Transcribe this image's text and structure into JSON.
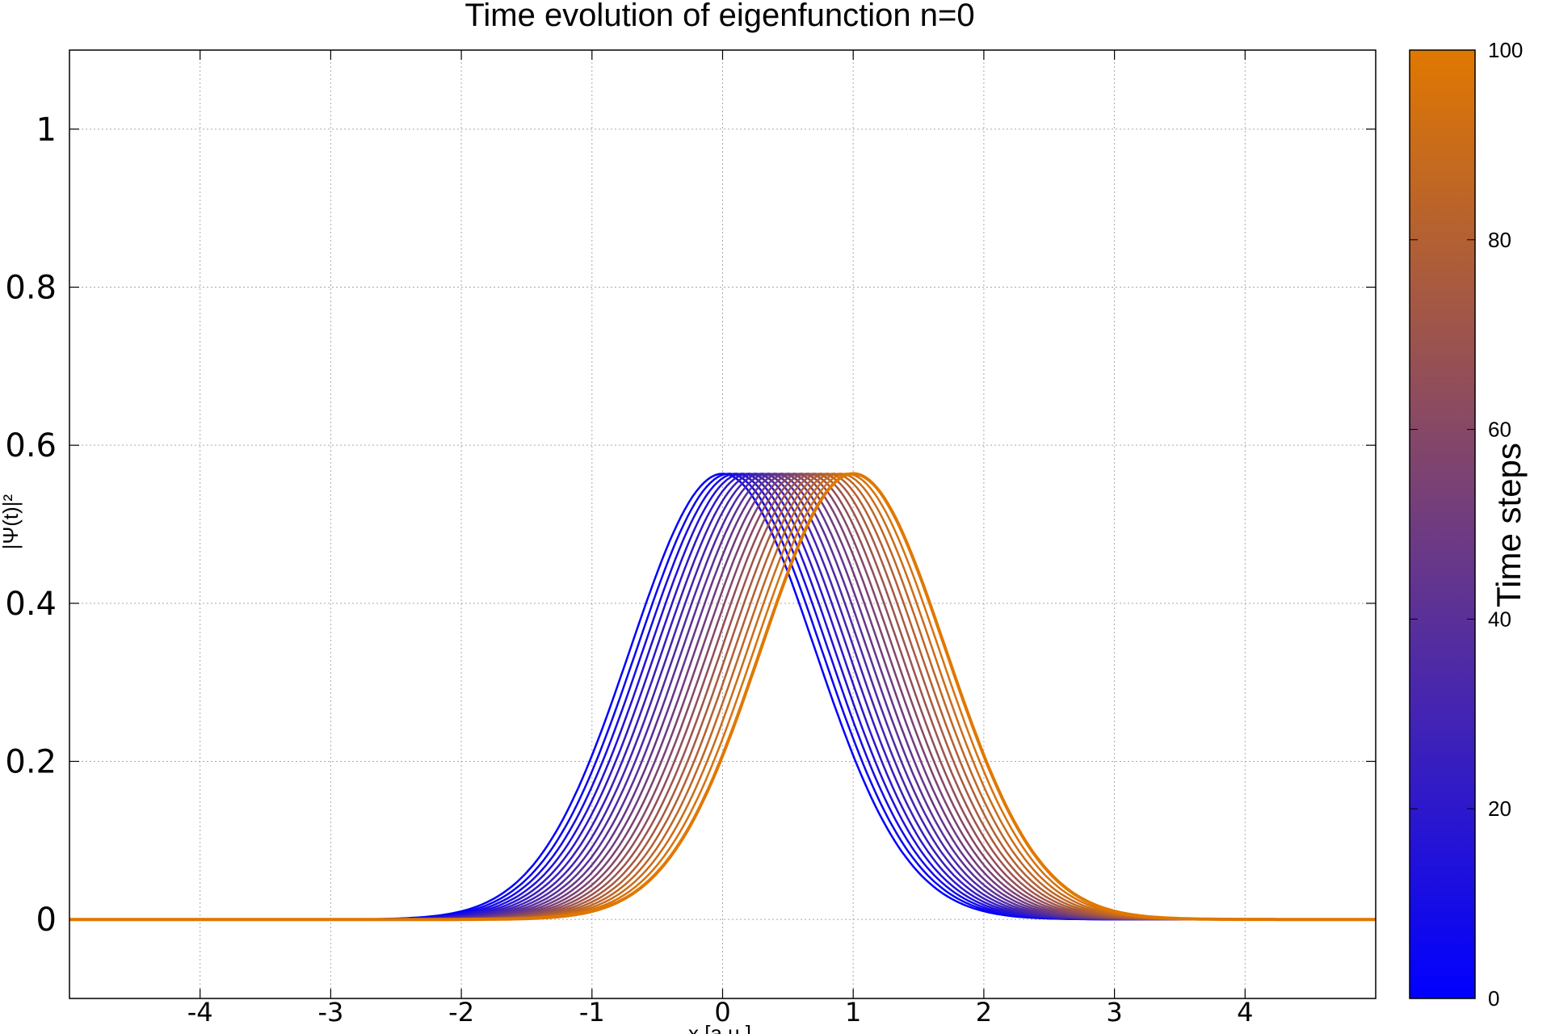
{
  "chart_data": {
    "type": "line",
    "title": "Time evolution of eigenfunction n=0",
    "xlabel": "x [a.u.]",
    "ylabel": "|Ψ(t)|²",
    "xlim": [
      -5,
      5
    ],
    "ylim": [
      -0.1,
      1.1
    ],
    "xticks": [
      "-4",
      "-3",
      "-2",
      "-1",
      "0",
      "1",
      "2",
      "3",
      "4"
    ],
    "yticks": [
      "0",
      "0.2",
      "0.4",
      "0.6",
      "0.8",
      "1"
    ],
    "grid": true,
    "colorbar": {
      "label": "Time steps",
      "range": [
        0,
        100
      ],
      "ticks": [
        "0",
        "20",
        "40",
        "60",
        "80",
        "100"
      ],
      "color_low": "#0000ff",
      "color_high": "#e07800"
    },
    "x_data_range": [
      -3,
      4
    ],
    "series_description": "|Psi|^2 of ground state Gaussian (peak 0.564) at successive time steps",
    "series": [
      {
        "time_step": 0,
        "center": 0.0,
        "peak": 0.564
      },
      {
        "time_step": 5,
        "center": 0.05,
        "peak": 0.564
      },
      {
        "time_step": 10,
        "center": 0.1,
        "peak": 0.564
      },
      {
        "time_step": 15,
        "center": 0.15,
        "peak": 0.564
      },
      {
        "time_step": 20,
        "center": 0.2,
        "peak": 0.564
      },
      {
        "time_step": 25,
        "center": 0.25,
        "peak": 0.564
      },
      {
        "time_step": 30,
        "center": 0.3,
        "peak": 0.564
      },
      {
        "time_step": 35,
        "center": 0.35,
        "peak": 0.564
      },
      {
        "time_step": 40,
        "center": 0.4,
        "peak": 0.564
      },
      {
        "time_step": 45,
        "center": 0.45,
        "peak": 0.564
      },
      {
        "time_step": 50,
        "center": 0.5,
        "peak": 0.564
      },
      {
        "time_step": 55,
        "center": 0.55,
        "peak": 0.564
      },
      {
        "time_step": 60,
        "center": 0.6,
        "peak": 0.564
      },
      {
        "time_step": 65,
        "center": 0.65,
        "peak": 0.564
      },
      {
        "time_step": 70,
        "center": 0.7,
        "peak": 0.564
      },
      {
        "time_step": 75,
        "center": 0.75,
        "peak": 0.564
      },
      {
        "time_step": 80,
        "center": 0.8,
        "peak": 0.564
      },
      {
        "time_step": 85,
        "center": 0.85,
        "peak": 0.564
      },
      {
        "time_step": 90,
        "center": 0.9,
        "peak": 0.564
      },
      {
        "time_step": 95,
        "center": 0.95,
        "peak": 0.564
      },
      {
        "time_step": 100,
        "center": 1.0,
        "peak": 0.564
      }
    ]
  }
}
